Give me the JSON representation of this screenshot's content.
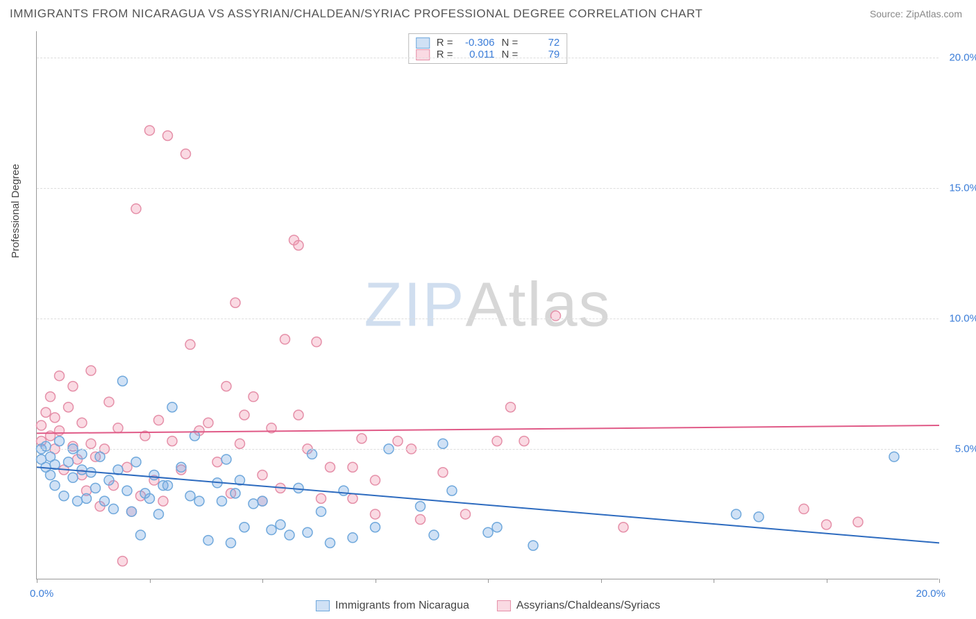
{
  "title": "IMMIGRANTS FROM NICARAGUA VS ASSYRIAN/CHALDEAN/SYRIAC PROFESSIONAL DEGREE CORRELATION CHART",
  "source": "Source: ZipAtlas.com",
  "yaxis_title": "Professional Degree",
  "watermark_a": "ZIP",
  "watermark_b": "Atlas",
  "chart": {
    "type": "scatter",
    "xlim": [
      0,
      20
    ],
    "ylim": [
      0,
      21
    ],
    "x_tick_positions": [
      0,
      2.5,
      5,
      7.5,
      10,
      12.5,
      15,
      17.5,
      20
    ],
    "x_label_min": "0.0%",
    "x_label_max": "20.0%",
    "y_gridlines": [
      5,
      10,
      15,
      20
    ],
    "y_labels": [
      "5.0%",
      "10.0%",
      "15.0%",
      "20.0%"
    ],
    "background": "#ffffff",
    "grid_color": "#dddddd",
    "axis_color": "#999999",
    "tick_label_color": "#3b7dd8",
    "marker_radius": 7,
    "marker_stroke_width": 1.5,
    "line_width": 2
  },
  "series": [
    {
      "name": "Immigrants from Nicaragua",
      "fill": "rgba(120,170,225,0.35)",
      "stroke": "#6fa8dc",
      "line_color": "#2d6bbf",
      "R": "-0.306",
      "N": "72",
      "trend": {
        "x1": 0,
        "y1": 4.3,
        "x2": 20,
        "y2": 1.4
      },
      "points": [
        [
          0.1,
          5.0
        ],
        [
          0.1,
          4.6
        ],
        [
          0.2,
          4.3
        ],
        [
          0.2,
          5.1
        ],
        [
          0.3,
          4.0
        ],
        [
          0.3,
          4.7
        ],
        [
          0.4,
          3.6
        ],
        [
          0.4,
          4.4
        ],
        [
          0.5,
          5.3
        ],
        [
          0.6,
          3.2
        ],
        [
          0.7,
          4.5
        ],
        [
          0.8,
          3.9
        ],
        [
          0.8,
          5.0
        ],
        [
          0.9,
          3.0
        ],
        [
          1.0,
          4.2
        ],
        [
          1.0,
          4.8
        ],
        [
          1.1,
          3.1
        ],
        [
          1.2,
          4.1
        ],
        [
          1.3,
          3.5
        ],
        [
          1.4,
          4.7
        ],
        [
          1.5,
          3.0
        ],
        [
          1.6,
          3.8
        ],
        [
          1.7,
          2.7
        ],
        [
          1.8,
          4.2
        ],
        [
          1.9,
          7.6
        ],
        [
          2.0,
          3.4
        ],
        [
          2.1,
          2.6
        ],
        [
          2.2,
          4.5
        ],
        [
          2.3,
          1.7
        ],
        [
          2.4,
          3.3
        ],
        [
          2.5,
          3.1
        ],
        [
          2.6,
          4.0
        ],
        [
          2.7,
          2.5
        ],
        [
          2.8,
          3.6
        ],
        [
          2.9,
          3.6
        ],
        [
          3.0,
          6.6
        ],
        [
          3.2,
          4.3
        ],
        [
          3.4,
          3.2
        ],
        [
          3.5,
          5.5
        ],
        [
          3.6,
          3.0
        ],
        [
          3.8,
          1.5
        ],
        [
          4.0,
          3.7
        ],
        [
          4.1,
          3.0
        ],
        [
          4.2,
          4.6
        ],
        [
          4.3,
          1.4
        ],
        [
          4.4,
          3.3
        ],
        [
          4.5,
          3.8
        ],
        [
          4.6,
          2.0
        ],
        [
          4.8,
          2.9
        ],
        [
          5.0,
          3.0
        ],
        [
          5.2,
          1.9
        ],
        [
          5.4,
          2.1
        ],
        [
          5.6,
          1.7
        ],
        [
          5.8,
          3.5
        ],
        [
          6.0,
          1.8
        ],
        [
          6.1,
          4.8
        ],
        [
          6.3,
          2.6
        ],
        [
          6.5,
          1.4
        ],
        [
          6.8,
          3.4
        ],
        [
          7.0,
          1.6
        ],
        [
          7.5,
          2.0
        ],
        [
          7.8,
          5.0
        ],
        [
          8.5,
          2.8
        ],
        [
          8.8,
          1.7
        ],
        [
          9.0,
          5.2
        ],
        [
          9.2,
          3.4
        ],
        [
          10.0,
          1.8
        ],
        [
          10.2,
          2.0
        ],
        [
          11.0,
          1.3
        ],
        [
          15.5,
          2.5
        ],
        [
          16.0,
          2.4
        ],
        [
          19.0,
          4.7
        ]
      ]
    },
    {
      "name": "Assyrians/Chaldeans/Syriacs",
      "fill": "rgba(240,150,175,0.35)",
      "stroke": "#e58fa8",
      "line_color": "#e05a87",
      "R": "0.011",
      "N": "79",
      "trend": {
        "x1": 0,
        "y1": 5.6,
        "x2": 20,
        "y2": 5.9
      },
      "points": [
        [
          0.1,
          5.9
        ],
        [
          0.1,
          5.3
        ],
        [
          0.2,
          6.4
        ],
        [
          0.3,
          5.5
        ],
        [
          0.3,
          7.0
        ],
        [
          0.4,
          5.0
        ],
        [
          0.4,
          6.2
        ],
        [
          0.5,
          7.8
        ],
        [
          0.5,
          5.7
        ],
        [
          0.6,
          4.2
        ],
        [
          0.7,
          6.6
        ],
        [
          0.8,
          5.1
        ],
        [
          0.8,
          7.4
        ],
        [
          0.9,
          4.6
        ],
        [
          1.0,
          4.0
        ],
        [
          1.0,
          6.0
        ],
        [
          1.1,
          3.4
        ],
        [
          1.2,
          5.2
        ],
        [
          1.2,
          8.0
        ],
        [
          1.3,
          4.7
        ],
        [
          1.4,
          2.8
        ],
        [
          1.5,
          5.0
        ],
        [
          1.6,
          6.8
        ],
        [
          1.7,
          3.6
        ],
        [
          1.8,
          5.8
        ],
        [
          1.9,
          0.7
        ],
        [
          2.0,
          4.3
        ],
        [
          2.1,
          2.6
        ],
        [
          2.2,
          14.2
        ],
        [
          2.3,
          3.2
        ],
        [
          2.4,
          5.5
        ],
        [
          2.5,
          17.2
        ],
        [
          2.6,
          3.8
        ],
        [
          2.7,
          6.1
        ],
        [
          2.8,
          3.0
        ],
        [
          2.9,
          17.0
        ],
        [
          3.0,
          5.3
        ],
        [
          3.2,
          4.2
        ],
        [
          3.3,
          16.3
        ],
        [
          3.4,
          9.0
        ],
        [
          3.6,
          5.7
        ],
        [
          3.8,
          6.0
        ],
        [
          4.0,
          4.5
        ],
        [
          4.2,
          7.4
        ],
        [
          4.3,
          3.3
        ],
        [
          4.4,
          10.6
        ],
        [
          4.5,
          5.2
        ],
        [
          4.6,
          6.3
        ],
        [
          4.8,
          7.0
        ],
        [
          5.0,
          4.0
        ],
        [
          5.0,
          3.0
        ],
        [
          5.2,
          5.8
        ],
        [
          5.4,
          3.5
        ],
        [
          5.5,
          9.2
        ],
        [
          5.7,
          13.0
        ],
        [
          5.8,
          6.3
        ],
        [
          5.8,
          12.8
        ],
        [
          6.0,
          5.0
        ],
        [
          6.2,
          9.1
        ],
        [
          6.5,
          4.3
        ],
        [
          6.3,
          3.1
        ],
        [
          7.0,
          4.3
        ],
        [
          7.0,
          3.1
        ],
        [
          7.2,
          5.4
        ],
        [
          7.5,
          2.5
        ],
        [
          7.5,
          3.8
        ],
        [
          8.0,
          5.3
        ],
        [
          8.3,
          5.0
        ],
        [
          8.5,
          2.3
        ],
        [
          9.0,
          4.1
        ],
        [
          9.5,
          2.5
        ],
        [
          10.2,
          5.3
        ],
        [
          10.5,
          6.6
        ],
        [
          10.8,
          5.3
        ],
        [
          11.5,
          10.1
        ],
        [
          13.0,
          2.0
        ],
        [
          17.0,
          2.7
        ],
        [
          17.5,
          2.1
        ],
        [
          18.2,
          2.2
        ]
      ]
    }
  ],
  "legend": {
    "r_label": "R =",
    "n_label": "N ="
  }
}
